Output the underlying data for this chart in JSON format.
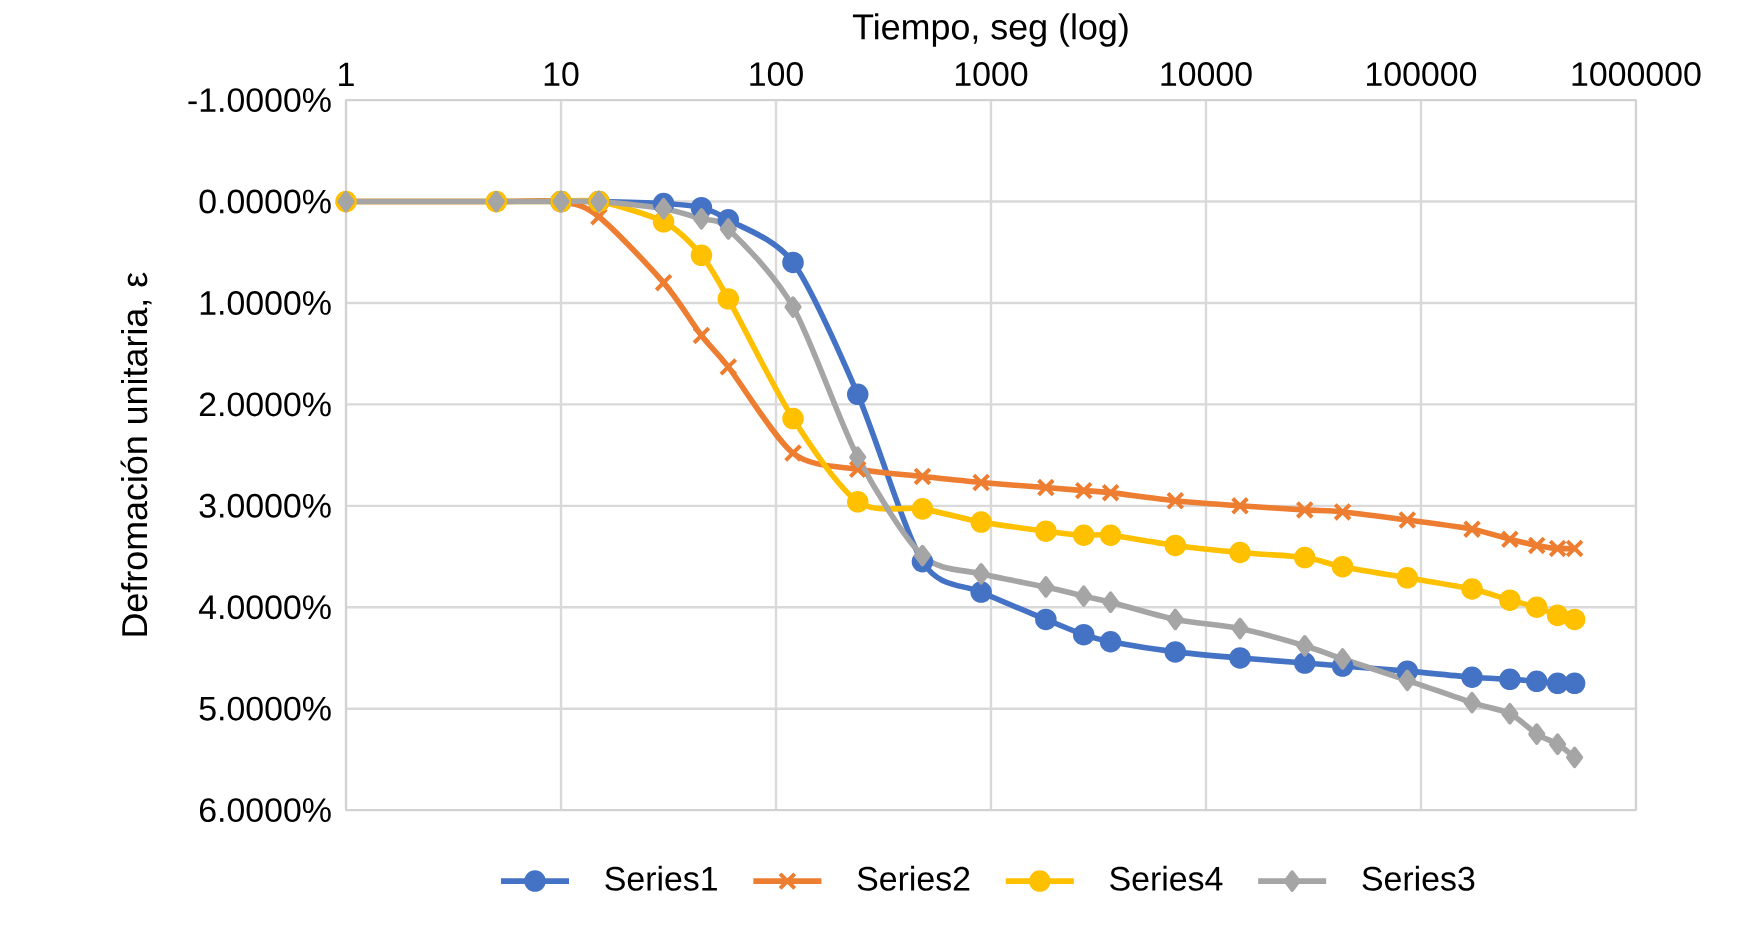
{
  "chart_data": {
    "type": "line",
    "xlabel": "Tiempo, seg (log)",
    "ylabel": "Defromación unitaria, ε",
    "log": "x",
    "grid": true,
    "legend": "bottom",
    "line_style": "solid",
    "xlim": [
      1,
      1000000
    ],
    "xticks": [
      1,
      10,
      100,
      1000,
      10000,
      100000,
      1000000
    ],
    "ylim": [
      6,
      -1
    ],
    "yticks": [
      {
        "value": -1,
        "label": "-1.0000%"
      },
      {
        "value": 0,
        "label": "0.0000%"
      },
      {
        "value": 1,
        "label": "1.0000%"
      },
      {
        "value": 2,
        "label": "2.0000%"
      },
      {
        "value": 3,
        "label": "3.0000%"
      },
      {
        "value": 4,
        "label": "4.0000%"
      },
      {
        "value": 5,
        "label": "5.0000%"
      },
      {
        "value": 6,
        "label": "6.0000%"
      }
    ],
    "x": [
      1,
      5,
      10,
      15,
      30,
      45,
      60,
      120,
      240,
      480,
      900,
      1800,
      2700,
      3600,
      7200,
      14400,
      28800,
      43200,
      86400,
      172800,
      259200,
      345600,
      432000,
      518400
    ],
    "series": [
      {
        "name": "Series1",
        "color": "#4472c4",
        "marker": "circle",
        "values": [
          null,
          null,
          0,
          0,
          0.02,
          0.06,
          0.18,
          0.6,
          1.9,
          3.55,
          3.85,
          4.12,
          4.27,
          4.34,
          4.44,
          4.5,
          4.55,
          4.58,
          4.63,
          4.69,
          4.71,
          4.73,
          4.75,
          4.75
        ]
      },
      {
        "name": "Series2",
        "color": "#ed7d31",
        "marker": "cross",
        "values": [
          0,
          0,
          0,
          0.15,
          0.8,
          1.32,
          1.63,
          2.48,
          2.64,
          2.71,
          2.77,
          2.82,
          2.85,
          2.87,
          2.95,
          3.0,
          3.04,
          3.06,
          3.14,
          3.23,
          3.33,
          3.39,
          3.42,
          3.42
        ]
      },
      {
        "name": "Series4",
        "color": "#ffc000",
        "marker": "circle",
        "values": [
          0,
          0,
          0,
          0,
          0.2,
          0.53,
          0.96,
          2.14,
          2.96,
          3.03,
          3.16,
          3.25,
          3.29,
          3.29,
          3.39,
          3.46,
          3.51,
          3.6,
          3.71,
          3.82,
          3.93,
          4.0,
          4.08,
          4.12
        ]
      },
      {
        "name": "Series3",
        "color": "#a5a5a5",
        "marker": "diamond",
        "values": [
          0,
          0,
          0,
          0,
          0.07,
          0.17,
          0.27,
          1.04,
          2.52,
          3.49,
          3.67,
          3.8,
          3.89,
          3.95,
          4.12,
          4.21,
          4.38,
          4.51,
          4.72,
          4.94,
          5.05,
          5.25,
          5.35,
          5.48
        ]
      }
    ]
  }
}
